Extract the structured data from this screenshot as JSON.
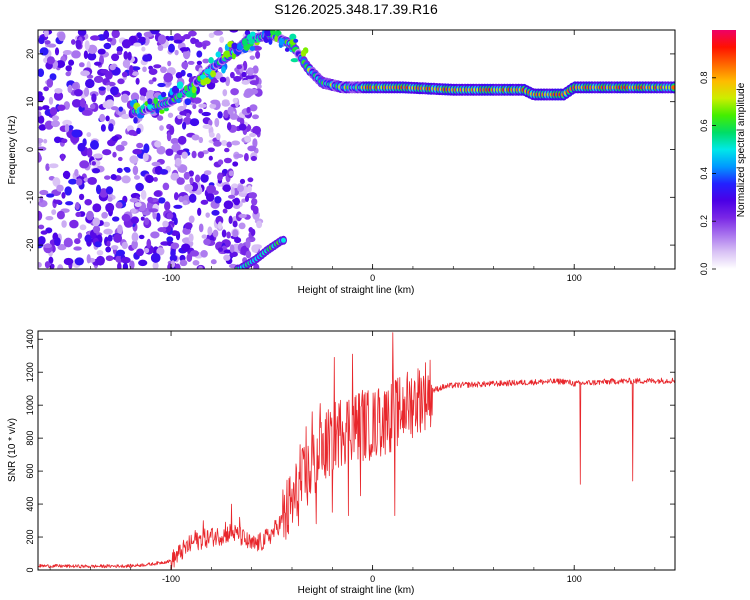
{
  "title": "S126.2025.348.17.39.R16",
  "chart_data": [
    {
      "type": "heatmap",
      "name": "spectrogram",
      "xlabel": "Height of straight line (km)",
      "ylabel": "Frequency (Hz)",
      "xlim": [
        -166,
        150
      ],
      "ylim": [
        -25,
        25
      ],
      "xticks": [
        -100,
        0,
        100
      ],
      "yticks": [
        -20,
        -10,
        0,
        10,
        20
      ],
      "ridge": [
        {
          "x": -115,
          "y": 8
        },
        {
          "x": -100,
          "y": 10
        },
        {
          "x": -90,
          "y": 13
        },
        {
          "x": -80,
          "y": 17
        },
        {
          "x": -70,
          "y": 20
        },
        {
          "x": -62,
          "y": 23
        },
        {
          "x": -50,
          "y": 24
        },
        {
          "x": -40,
          "y": 22
        },
        {
          "x": -32,
          "y": 17
        },
        {
          "x": -25,
          "y": 14
        },
        {
          "x": -15,
          "y": 13
        },
        {
          "x": 0,
          "y": 13
        },
        {
          "x": 15,
          "y": 13
        },
        {
          "x": 40,
          "y": 12.5
        },
        {
          "x": 60,
          "y": 12.5
        },
        {
          "x": 75,
          "y": 12.5
        },
        {
          "x": 80,
          "y": 11.5
        },
        {
          "x": 95,
          "y": 11.5
        },
        {
          "x": 100,
          "y": 13
        },
        {
          "x": 150,
          "y": 13
        }
      ],
      "lower_branch": [
        {
          "x": -66,
          "y": -25
        },
        {
          "x": -58,
          "y": -23
        },
        {
          "x": -52,
          "y": -21
        },
        {
          "x": -45,
          "y": -19
        }
      ],
      "colorbar": {
        "label": "Normalized spectral amplitude",
        "range": [
          0,
          1
        ],
        "ticks": [
          "0.0",
          "0.2",
          "0.4",
          "0.6",
          "0.8"
        ],
        "colors": [
          "#ffffff",
          "#d9c2f5",
          "#a974ee",
          "#7a27e6",
          "#4b00e6",
          "#2222ff",
          "#0099ff",
          "#00e8e8",
          "#00dd66",
          "#44ee00",
          "#ccee00",
          "#ffbb00",
          "#ff6600",
          "#ff1100",
          "#ee0066"
        ]
      }
    },
    {
      "type": "line",
      "name": "snr",
      "xlabel": "Height of straight line (km)",
      "ylabel": "SNR (10 * v/v)",
      "xlim": [
        -166,
        150
      ],
      "ylim": [
        0,
        1450
      ],
      "xticks": [
        -100,
        0,
        100
      ],
      "yticks": [
        0,
        200,
        400,
        600,
        800,
        1000,
        1200,
        1400
      ],
      "line_color": "#e8262b",
      "points": [
        [
          -166,
          25
        ],
        [
          -140,
          22
        ],
        [
          -120,
          25
        ],
        [
          -110,
          35
        ],
        [
          -100,
          55
        ],
        [
          -95,
          110
        ],
        [
          -90,
          160
        ],
        [
          -85,
          185
        ],
        [
          -80,
          200
        ],
        [
          -75,
          210
        ],
        [
          -70,
          230
        ],
        [
          -65,
          200
        ],
        [
          -60,
          150
        ],
        [
          -55,
          170
        ],
        [
          -50,
          220
        ],
        [
          -45,
          300
        ],
        [
          -40,
          400
        ],
        [
          -35,
          520
        ],
        [
          -30,
          620
        ],
        [
          -25,
          720
        ],
        [
          -20,
          800
        ],
        [
          -15,
          850
        ],
        [
          -10,
          880
        ],
        [
          -5,
          880
        ],
        [
          0,
          880
        ],
        [
          5,
          900
        ],
        [
          10,
          940
        ],
        [
          15,
          980
        ],
        [
          20,
          1020
        ],
        [
          25,
          1060
        ],
        [
          30,
          1090
        ],
        [
          35,
          1110
        ],
        [
          40,
          1120
        ],
        [
          60,
          1130
        ],
        [
          80,
          1140
        ],
        [
          95,
          1145
        ],
        [
          100,
          1130
        ],
        [
          120,
          1145
        ],
        [
          150,
          1150
        ]
      ],
      "spikes": [
        [
          -88,
          240
        ],
        [
          -84,
          300
        ],
        [
          -80,
          250
        ],
        [
          -73,
          290
        ],
        [
          -70,
          400
        ],
        [
          -66,
          320
        ],
        [
          -36,
          760
        ],
        [
          -33,
          870
        ],
        [
          -30,
          960
        ],
        [
          -26,
          1010
        ],
        [
          -19,
          1290
        ],
        [
          -15,
          900
        ],
        [
          -10,
          1310
        ],
        [
          -5,
          1090
        ],
        [
          3,
          1100
        ],
        [
          7,
          1080
        ],
        [
          10,
          1440
        ],
        [
          13,
          1020
        ],
        [
          16,
          1050
        ]
      ],
      "dips": [
        [
          -28,
          280
        ],
        [
          -20,
          350
        ],
        [
          -12,
          330
        ],
        [
          -6,
          450
        ],
        [
          11,
          330
        ],
        [
          103,
          520
        ],
        [
          129,
          540
        ]
      ]
    }
  ]
}
